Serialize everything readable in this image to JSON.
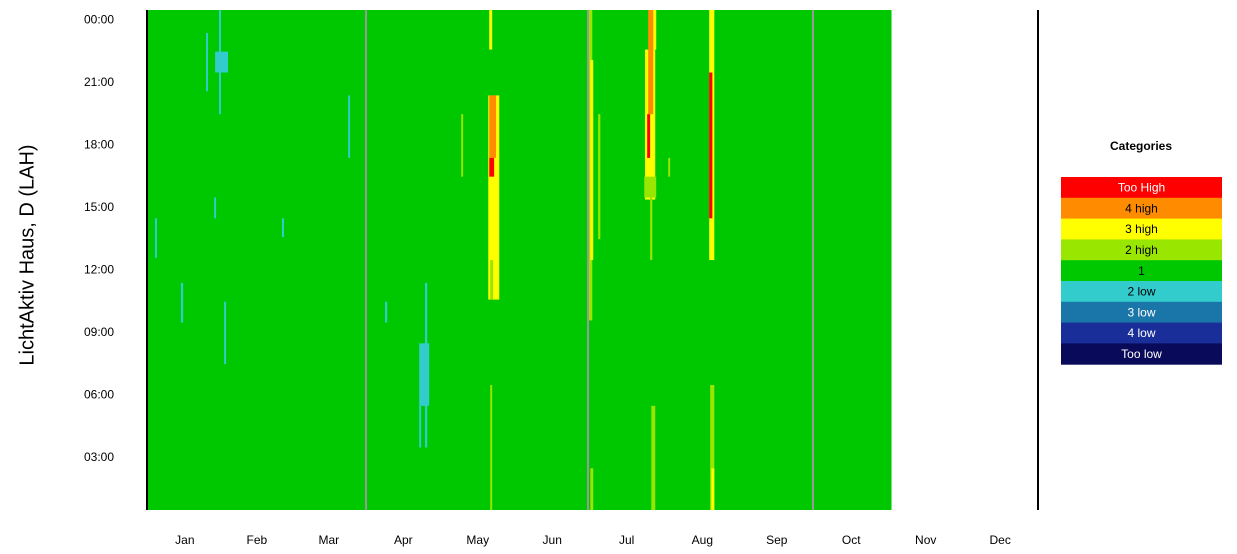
{
  "chart_data": {
    "type": "heatmap",
    "y_label": "LichtAktiv Haus, D (LAH)",
    "legend_title": "Categories",
    "legend": [
      {
        "name": "Too High",
        "color": "#ff0000",
        "text_color": "#ffffff"
      },
      {
        "name": "4 high",
        "color": "#ff8c00",
        "text_color": "#000000"
      },
      {
        "name": "3 high",
        "color": "#ffff00",
        "text_color": "#000000"
      },
      {
        "name": "2 high",
        "color": "#99e600",
        "text_color": "#000000"
      },
      {
        "name": "1",
        "color": "#00c800",
        "text_color": "#000000"
      },
      {
        "name": "2 low",
        "color": "#33cccc",
        "text_color": "#000000"
      },
      {
        "name": "3 low",
        "color": "#1a75a8",
        "text_color": "#ffffff"
      },
      {
        "name": "4 low",
        "color": "#1a2e99",
        "text_color": "#ffffff"
      },
      {
        "name": "Too low",
        "color": "#0a0a5a",
        "text_color": "#ffffff"
      }
    ],
    "xlim": [
      0,
      365
    ],
    "xticks": [
      {
        "value": 15.5,
        "label": "Jan"
      },
      {
        "value": 45,
        "label": "Feb"
      },
      {
        "value": 74.5,
        "label": "Mar"
      },
      {
        "value": 105,
        "label": "Apr"
      },
      {
        "value": 135.5,
        "label": "May"
      },
      {
        "value": 166,
        "label": "Jun"
      },
      {
        "value": 196.5,
        "label": "Jul"
      },
      {
        "value": 227.5,
        "label": "Aug"
      },
      {
        "value": 258,
        "label": "Sep"
      },
      {
        "value": 288.5,
        "label": "Oct"
      },
      {
        "value": 319,
        "label": "Nov"
      },
      {
        "value": 349.5,
        "label": "Dec"
      }
    ],
    "ylim": [
      0.5,
      24.5
    ],
    "yticks": [
      {
        "value": 24,
        "label": "00:00"
      },
      {
        "value": 21,
        "label": "21:00"
      },
      {
        "value": 18,
        "label": "18:00"
      },
      {
        "value": 15,
        "label": "15:00"
      },
      {
        "value": 12,
        "label": "12:00"
      },
      {
        "value": 9,
        "label": "09:00"
      },
      {
        "value": 6,
        "label": "06:00"
      },
      {
        "value": 3,
        "label": "03:00"
      }
    ],
    "cells": [
      {
        "x0": 0,
        "x1": 305,
        "y0": 0.5,
        "y1": 24.5,
        "category": "1"
      },
      {
        "x0": 3.3,
        "x1": 4.1,
        "y0": 12.6,
        "y1": 14.5,
        "category": "2 low"
      },
      {
        "x0": 13.9,
        "x1": 14.8,
        "y0": 9.5,
        "y1": 11.4,
        "category": "2 low"
      },
      {
        "x0": 24.2,
        "x1": 25,
        "y0": 20.6,
        "y1": 23.4,
        "category": "2 low"
      },
      {
        "x0": 27.9,
        "x1": 33.2,
        "y0": 21.5,
        "y1": 22.5,
        "category": "2 low"
      },
      {
        "x0": 29.5,
        "x1": 30.3,
        "y0": 19.5,
        "y1": 24.5,
        "category": "2 low"
      },
      {
        "x0": 27.5,
        "x1": 28.3,
        "y0": 14.5,
        "y1": 15.5,
        "category": "2 low"
      },
      {
        "x0": 31.6,
        "x1": 32.4,
        "y0": 7.5,
        "y1": 10.5,
        "category": "2 low"
      },
      {
        "x0": 55.3,
        "x1": 56.1,
        "y0": 13.6,
        "y1": 14.5,
        "category": "2 low"
      },
      {
        "x0": 82.4,
        "x1": 83.2,
        "y0": 17.4,
        "y1": 20.4,
        "category": "2 low"
      },
      {
        "x0": 97.5,
        "x1": 98.4,
        "y0": 9.5,
        "y1": 10.5,
        "category": "2 low"
      },
      {
        "x0": 111.5,
        "x1": 115.6,
        "y0": 5.5,
        "y1": 8.5,
        "category": "2 low"
      },
      {
        "x0": 111.5,
        "x1": 112.3,
        "y0": 3.5,
        "y1": 5.5,
        "category": "2 low"
      },
      {
        "x0": 113.9,
        "x1": 114.8,
        "y0": 3.5,
        "y1": 11.4,
        "category": "2 low"
      },
      {
        "x0": 128.7,
        "x1": 129.5,
        "y0": 16.5,
        "y1": 19.5,
        "category": "2 high"
      },
      {
        "x0": 140.6,
        "x1": 141.4,
        "y0": 0.5,
        "y1": 6.5,
        "category": "2 high"
      },
      {
        "x0": 140.2,
        "x1": 141.4,
        "y0": 22.6,
        "y1": 24.5,
        "category": "3 high"
      },
      {
        "x0": 139.8,
        "x1": 144.3,
        "y0": 10.6,
        "y1": 20.4,
        "category": "3 high"
      },
      {
        "x0": 140.6,
        "x1": 141.8,
        "y0": 10.6,
        "y1": 12.5,
        "category": "2 high"
      },
      {
        "x0": 140.2,
        "x1": 143,
        "y0": 17.4,
        "y1": 20.4,
        "category": "4 high"
      },
      {
        "x0": 140.2,
        "x1": 142.2,
        "y0": 16.5,
        "y1": 17.4,
        "category": "Too High"
      },
      {
        "x0": 181,
        "x1": 182.4,
        "y0": 9.6,
        "y1": 24.5,
        "category": "2 high"
      },
      {
        "x0": 181.6,
        "x1": 182.8,
        "y0": 12.5,
        "y1": 22.1,
        "category": "3 high"
      },
      {
        "x0": 181.6,
        "x1": 182.8,
        "y0": 0.5,
        "y1": 2.5,
        "category": "2 high"
      },
      {
        "x0": 184.8,
        "x1": 185.7,
        "y0": 13.5,
        "y1": 19.5,
        "category": "2 high"
      },
      {
        "x0": 204,
        "x1": 208.2,
        "y0": 15.4,
        "y1": 22.6,
        "category": "3 high"
      },
      {
        "x0": 205.3,
        "x1": 207.4,
        "y0": 19.5,
        "y1": 24.5,
        "category": "4 high"
      },
      {
        "x0": 207.4,
        "x1": 208.6,
        "y0": 22.6,
        "y1": 24.5,
        "category": "3 high"
      },
      {
        "x0": 204.9,
        "x1": 206.1,
        "y0": 17.4,
        "y1": 19.5,
        "category": "Too High"
      },
      {
        "x0": 203.7,
        "x1": 208.6,
        "y0": 15.5,
        "y1": 16.5,
        "category": "2 high"
      },
      {
        "x0": 206.1,
        "x1": 207,
        "y0": 12.5,
        "y1": 15.5,
        "category": "2 high"
      },
      {
        "x0": 206.6,
        "x1": 208.2,
        "y0": 0.5,
        "y1": 5.5,
        "category": "2 high"
      },
      {
        "x0": 213.5,
        "x1": 214.3,
        "y0": 16.5,
        "y1": 17.4,
        "category": "2 high"
      },
      {
        "x0": 230.3,
        "x1": 232.4,
        "y0": 12.5,
        "y1": 24.5,
        "category": "3 high"
      },
      {
        "x0": 230.3,
        "x1": 231.6,
        "y0": 14.5,
        "y1": 21.5,
        "category": "Too High"
      },
      {
        "x0": 230.7,
        "x1": 232.4,
        "y0": 0.5,
        "y1": 6.5,
        "category": "2 high"
      },
      {
        "x0": 231.2,
        "x1": 232.4,
        "y0": 0.5,
        "y1": 2.5,
        "category": "3 high"
      }
    ]
  }
}
